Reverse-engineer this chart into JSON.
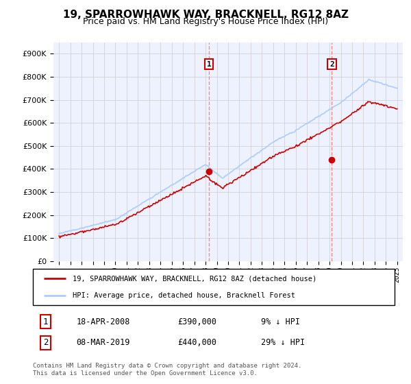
{
  "title": "19, SPARROWHAWK WAY, BRACKNELL, RG12 8AZ",
  "subtitle": "Price paid vs. HM Land Registry's House Price Index (HPI)",
  "legend_house": "19, SPARROWHAWK WAY, BRACKNELL, RG12 8AZ (detached house)",
  "legend_hpi": "HPI: Average price, detached house, Bracknell Forest",
  "footnote": "Contains HM Land Registry data © Crown copyright and database right 2024.\nThis data is licensed under the Open Government Licence v3.0.",
  "sale1_date": "18-APR-2008",
  "sale1_price": "£390,000",
  "sale1_hpi": "9% ↓ HPI",
  "sale2_date": "08-MAR-2019",
  "sale2_price": "£440,000",
  "sale2_hpi": "29% ↓ HPI",
  "house_color": "#cc0000",
  "hpi_color": "#aaccff",
  "vline_color": "#ff8888",
  "yticks": [
    0,
    100000,
    200000,
    300000,
    400000,
    500000,
    600000,
    700000,
    800000,
    900000
  ],
  "plot_bg_color": "#eef2ff",
  "grid_color": "#cccccc",
  "noise_scale": 1500
}
